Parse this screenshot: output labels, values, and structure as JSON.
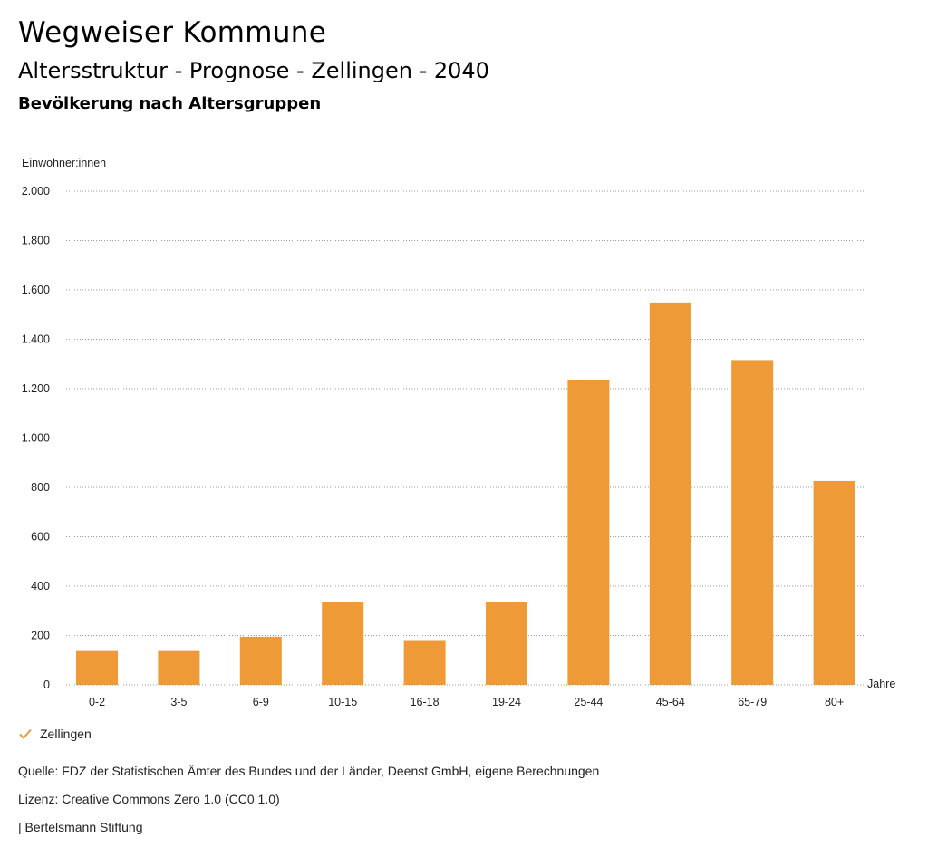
{
  "header": {
    "title": "Wegweiser Kommune",
    "subtitle": "Altersstruktur - Prognose - Zellingen - 2040",
    "subsubtitle": "Bevölkerung nach Altersgruppen"
  },
  "chart_data": {
    "type": "bar",
    "ylabel": "Einwohner:innen",
    "xlabel": "Jahre",
    "ylim": [
      0,
      2000
    ],
    "yticks": [
      0,
      200,
      400,
      600,
      800,
      1000,
      1200,
      1400,
      1600,
      1800,
      2000
    ],
    "ytick_labels": [
      "0",
      "200",
      "400",
      "600",
      "800",
      "1.000",
      "1.200",
      "1.400",
      "1.600",
      "1.800",
      "2.000"
    ],
    "categories": [
      "0-2",
      "3-5",
      "6-9",
      "10-15",
      "16-18",
      "19-24",
      "25-44",
      "45-64",
      "65-79",
      "80+"
    ],
    "series": [
      {
        "name": "Zellingen",
        "color": "#ed9a37",
        "values": [
          137,
          137,
          195,
          336,
          178,
          336,
          1236,
          1549,
          1316,
          826
        ]
      }
    ],
    "grid": "horizontal dotted",
    "legend": "bottom-left"
  },
  "legend": {
    "label": "Zellingen",
    "icon": "check-icon",
    "color": "#ed9a37"
  },
  "footer": {
    "source": "Quelle: FDZ der Statistischen Ämter des Bundes und der Länder, Deenst GmbH, eigene Berechnungen",
    "license": "Lizenz: Creative Commons Zero 1.0 (CC0 1.0)",
    "publisher": "| Bertelsmann Stiftung"
  }
}
